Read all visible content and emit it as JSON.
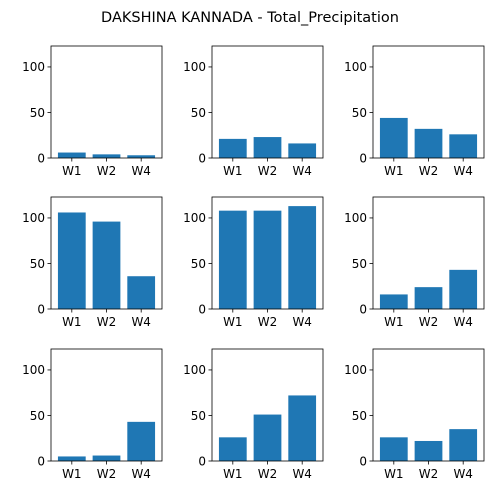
{
  "chart_data": {
    "type": "bar",
    "title": "DAKSHINA KANNADA - Total_Precipitation",
    "categories": [
      "W1",
      "W2",
      "W4"
    ],
    "ylim": [
      0,
      123
    ],
    "yticks": [
      0,
      50,
      100
    ],
    "grid": false,
    "bar_color": "#1f77b4",
    "panels": [
      {
        "values": [
          6,
          4,
          3
        ]
      },
      {
        "values": [
          21,
          23,
          16
        ]
      },
      {
        "values": [
          44,
          32,
          26
        ]
      },
      {
        "values": [
          106,
          96,
          36
        ]
      },
      {
        "values": [
          108,
          108,
          113
        ]
      },
      {
        "values": [
          16,
          24,
          43
        ]
      },
      {
        "values": [
          5,
          6,
          43
        ]
      },
      {
        "values": [
          26,
          51,
          72
        ]
      },
      {
        "values": [
          26,
          22,
          35
        ]
      }
    ]
  }
}
